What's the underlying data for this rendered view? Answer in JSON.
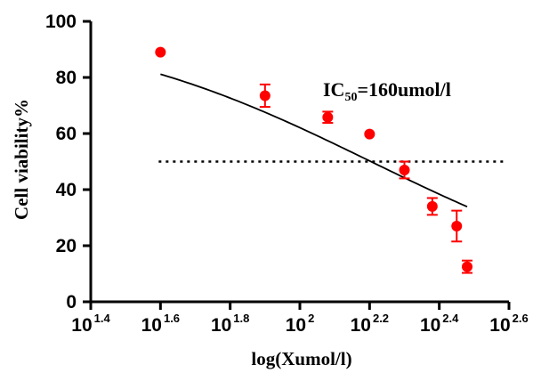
{
  "chart_data": {
    "type": "scatter",
    "xlabel": "log(Xumol/l)",
    "ylabel": "Cell viability%",
    "x_scale": "log10",
    "xlim": [
      1.4,
      2.6
    ],
    "ylim": [
      0,
      100
    ],
    "x_ticks": [
      {
        "base": "10",
        "exp": "1.4",
        "value": 1.4
      },
      {
        "base": "10",
        "exp": "1.6",
        "value": 1.6
      },
      {
        "base": "10",
        "exp": "1.8",
        "value": 1.8
      },
      {
        "base": "10",
        "exp": "2",
        "value": 2.0
      },
      {
        "base": "10",
        "exp": "2.2",
        "value": 2.2
      },
      {
        "base": "10",
        "exp": "2.4",
        "value": 2.4
      },
      {
        "base": "10",
        "exp": "2.6",
        "value": 2.6
      }
    ],
    "y_ticks": [
      "0",
      "20",
      "40",
      "60",
      "80",
      "100"
    ],
    "series": [
      {
        "marker_color": "#ff0000",
        "points": [
          {
            "x": 1.6,
            "y": 89,
            "err": 0
          },
          {
            "x": 1.9,
            "y": 73.5,
            "err": 4
          },
          {
            "x": 2.08,
            "y": 65.8,
            "err": 2
          },
          {
            "x": 2.2,
            "y": 59.8,
            "err": 0
          },
          {
            "x": 2.3,
            "y": 47,
            "err": 3
          },
          {
            "x": 2.38,
            "y": 34,
            "err": 3
          },
          {
            "x": 2.45,
            "y": 27,
            "err": 5.5
          },
          {
            "x": 2.48,
            "y": 12.5,
            "err": 2.2
          }
        ]
      }
    ],
    "fit_curve": {
      "color": "#000000",
      "x_start": 1.6,
      "x_end": 2.48,
      "top": 100,
      "bottom": 0,
      "log_ic50": 2.204,
      "hill": 1.05
    },
    "reference_line": {
      "y": 50,
      "x_start": 1.6,
      "x_end": 2.6,
      "style": "dotted",
      "color": "#000000"
    },
    "annotation": {
      "main": "IC",
      "sub": "50",
      "rest": "=160umol/l"
    },
    "grid": false,
    "legend": "none"
  }
}
